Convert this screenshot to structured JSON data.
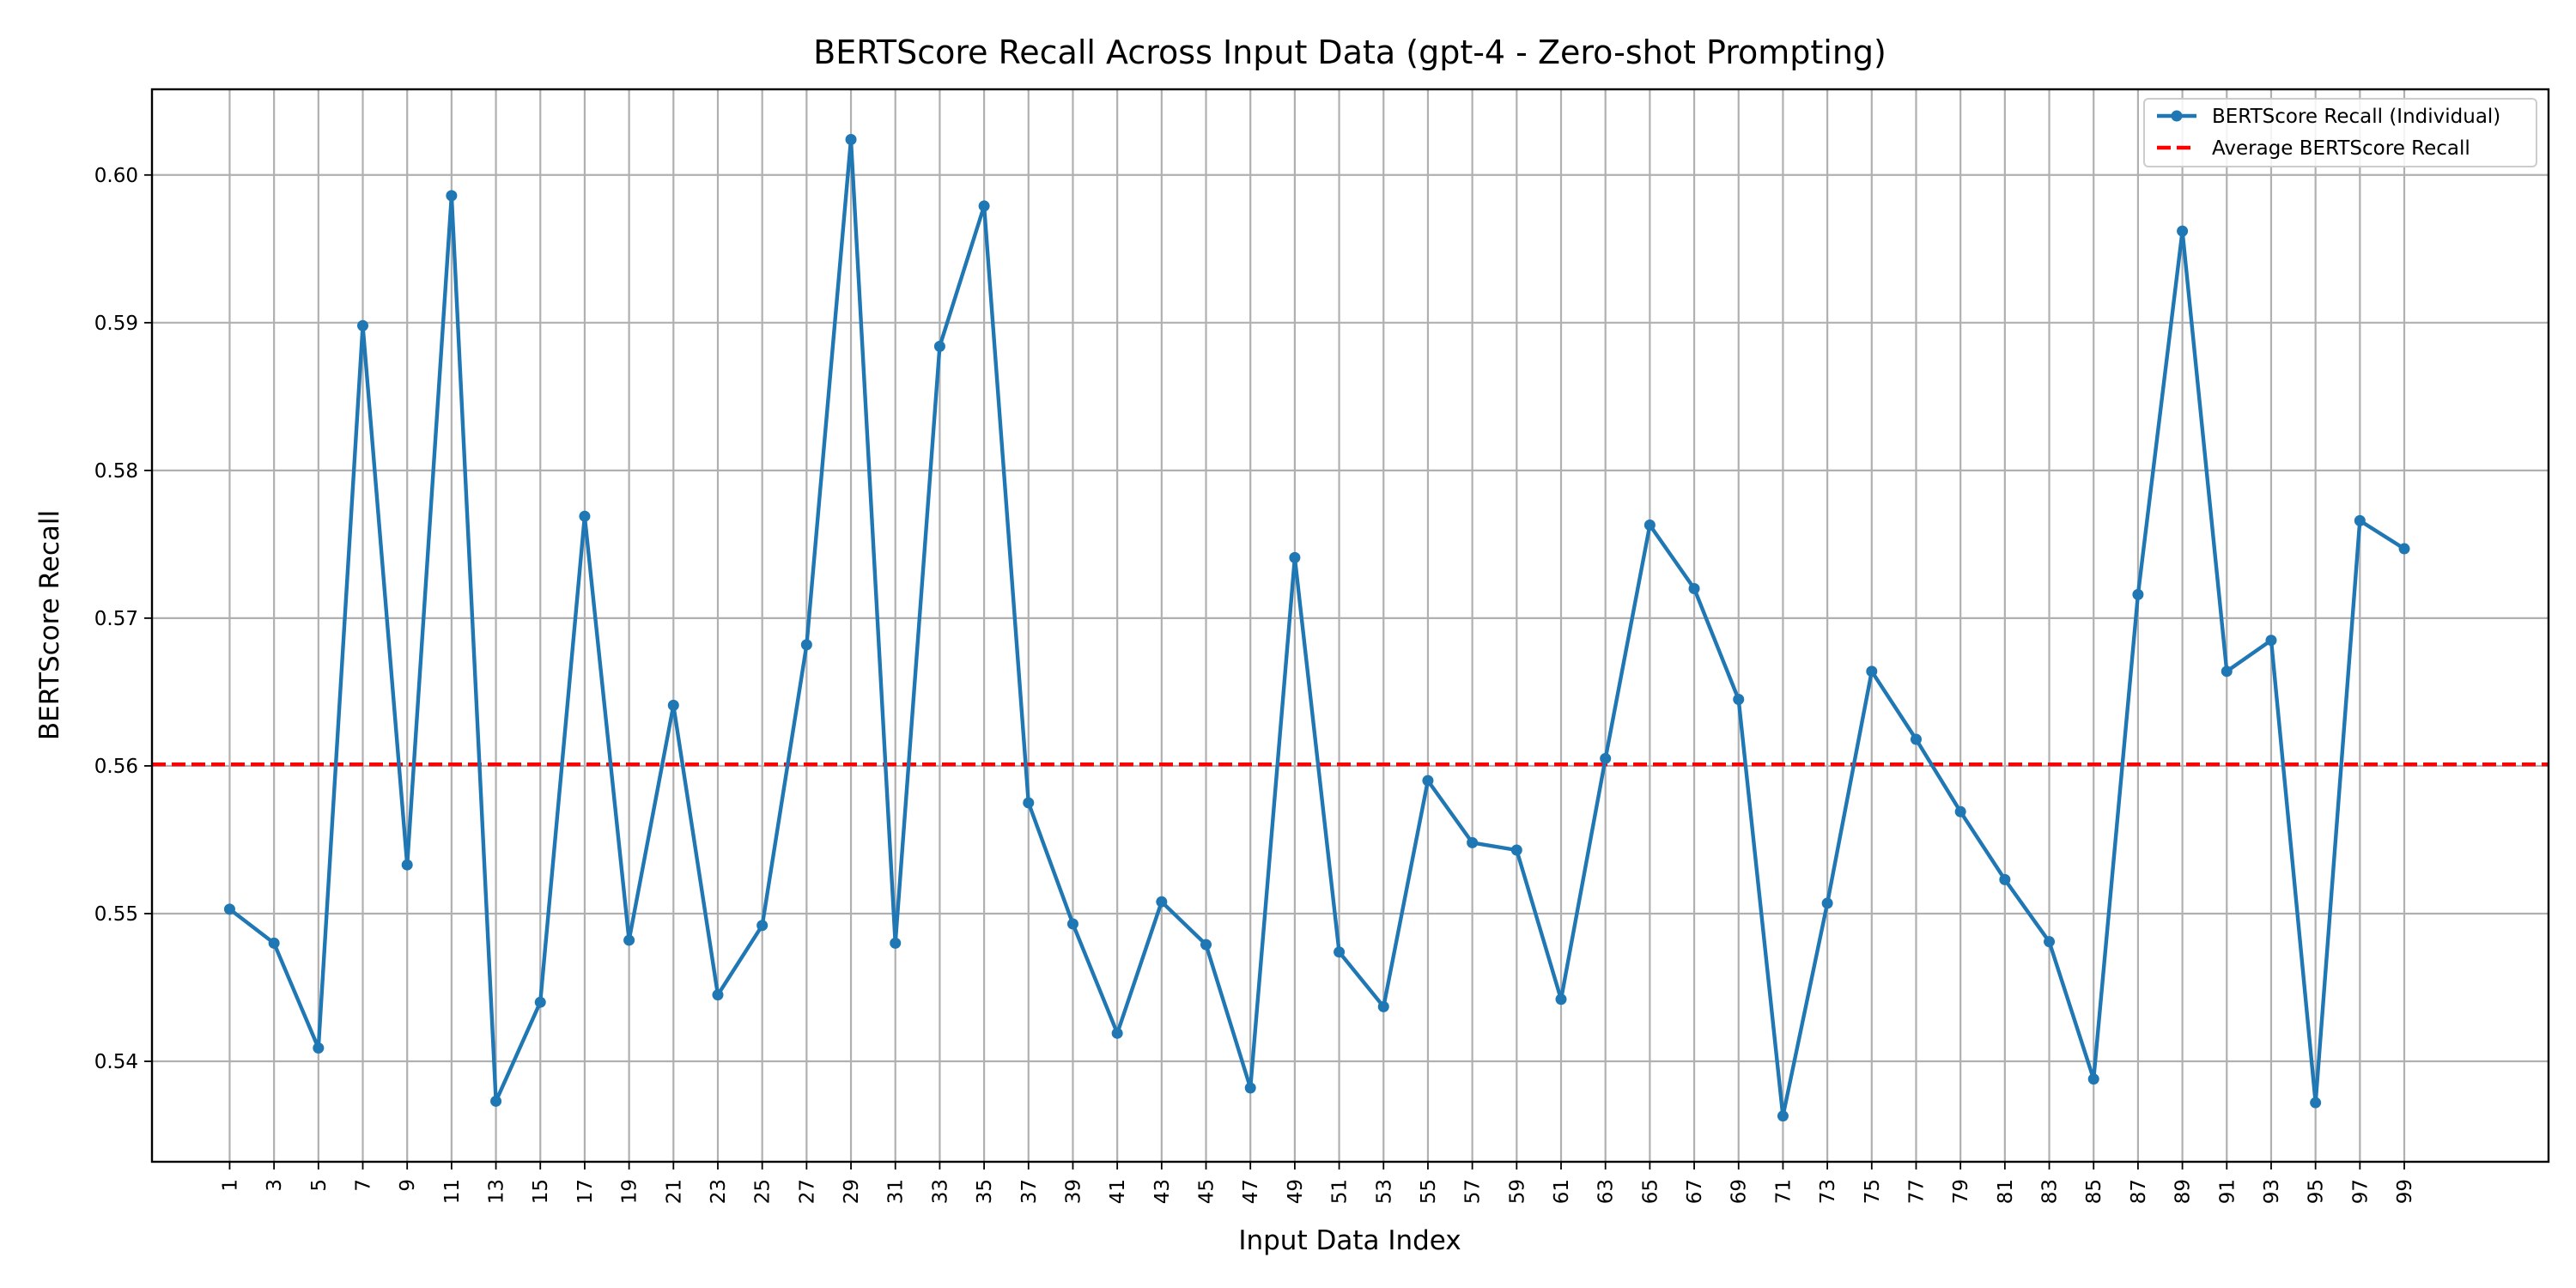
{
  "chart_data": {
    "type": "line",
    "title": "BERTScore Recall Across Input Data (gpt-4 - Zero-shot Prompting)",
    "xlabel": "Input Data Index",
    "ylabel": "BERTScore Recall",
    "xlim": [
      -2.5,
      105.5
    ],
    "ylim": [
      0.5332,
      0.6058
    ],
    "x_ticks": [
      1,
      3,
      5,
      7,
      9,
      11,
      13,
      15,
      17,
      19,
      21,
      23,
      25,
      27,
      29,
      31,
      33,
      35,
      37,
      39,
      41,
      43,
      45,
      47,
      49,
      51,
      53,
      55,
      57,
      59,
      61,
      63,
      65,
      67,
      69,
      71,
      73,
      75,
      77,
      79,
      81,
      83,
      85,
      87,
      89,
      91,
      93,
      95,
      97,
      99
    ],
    "y_ticks": [
      0.54,
      0.55,
      0.56,
      0.57,
      0.58,
      0.59,
      0.6
    ],
    "y_tick_labels": [
      "0.54",
      "0.55",
      "0.56",
      "0.57",
      "0.58",
      "0.59",
      "0.60"
    ],
    "grid": true,
    "legend_position": "top-right",
    "series": [
      {
        "name": "BERTScore Recall (Individual)",
        "color": "#1f77b4",
        "style": "line-marker",
        "x": [
          1,
          3,
          5,
          7,
          9,
          11,
          13,
          15,
          17,
          19,
          21,
          23,
          25,
          27,
          29,
          31,
          33,
          35,
          37,
          39,
          41,
          43,
          45,
          47,
          49,
          51,
          53,
          55,
          57,
          59,
          61,
          63,
          65,
          67,
          69,
          71,
          73,
          75,
          77,
          79,
          81,
          83,
          85,
          87,
          89,
          91,
          93,
          95,
          97,
          99
        ],
        "values": [
          0.5503,
          0.548,
          0.5409,
          0.5898,
          0.5533,
          0.5986,
          0.5373,
          0.544,
          0.5769,
          0.5482,
          0.5641,
          0.5445,
          0.5492,
          0.5682,
          0.6024,
          0.548,
          0.5884,
          0.5979,
          0.5575,
          0.5493,
          0.5419,
          0.5508,
          0.5479,
          0.5382,
          0.5741,
          0.5474,
          0.5437,
          0.559,
          0.5548,
          0.5543,
          0.5442,
          0.5605,
          0.5763,
          0.572,
          0.5645,
          0.5363,
          0.5507,
          0.5664,
          0.5618,
          0.5569,
          0.5523,
          0.5481,
          0.5388,
          0.5716,
          0.5962,
          0.5664,
          0.5685,
          0.5372,
          0.5766,
          0.5747
        ]
      },
      {
        "name": "Average BERTScore Recall",
        "color": "#ff0000",
        "style": "dashed-hline",
        "value": 0.5601
      }
    ]
  }
}
